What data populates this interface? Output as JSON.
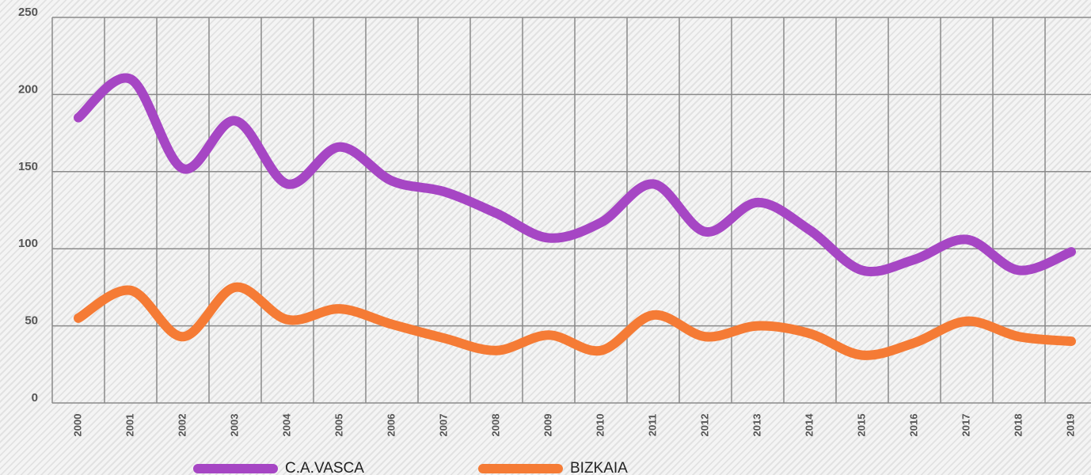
{
  "chart_data": {
    "type": "line",
    "categories": [
      "2000",
      "2001",
      "2002",
      "2003",
      "2004",
      "2005",
      "2006",
      "2007",
      "2008",
      "2009",
      "2010",
      "2011",
      "2012",
      "2013",
      "2014",
      "2015",
      "2016",
      "2017",
      "2018",
      "2019"
    ],
    "series": [
      {
        "name": "C.A.VASCA",
        "color": "#a646c4",
        "values": [
          185,
          210,
          152,
          183,
          142,
          166,
          144,
          137,
          123,
          107,
          117,
          142,
          111,
          130,
          112,
          86,
          93,
          106,
          86,
          98
        ]
      },
      {
        "name": "BIZKAIA",
        "color": "#f57b35",
        "values": [
          55,
          73,
          43,
          75,
          54,
          61,
          51,
          42,
          34,
          44,
          34,
          57,
          43,
          50,
          45,
          31,
          39,
          53,
          43,
          40
        ]
      }
    ],
    "ylim": [
      0,
      250
    ],
    "yticks": [
      0,
      50,
      100,
      150,
      200,
      250
    ],
    "grid": true,
    "smooth": true,
    "legend": "bottom"
  }
}
